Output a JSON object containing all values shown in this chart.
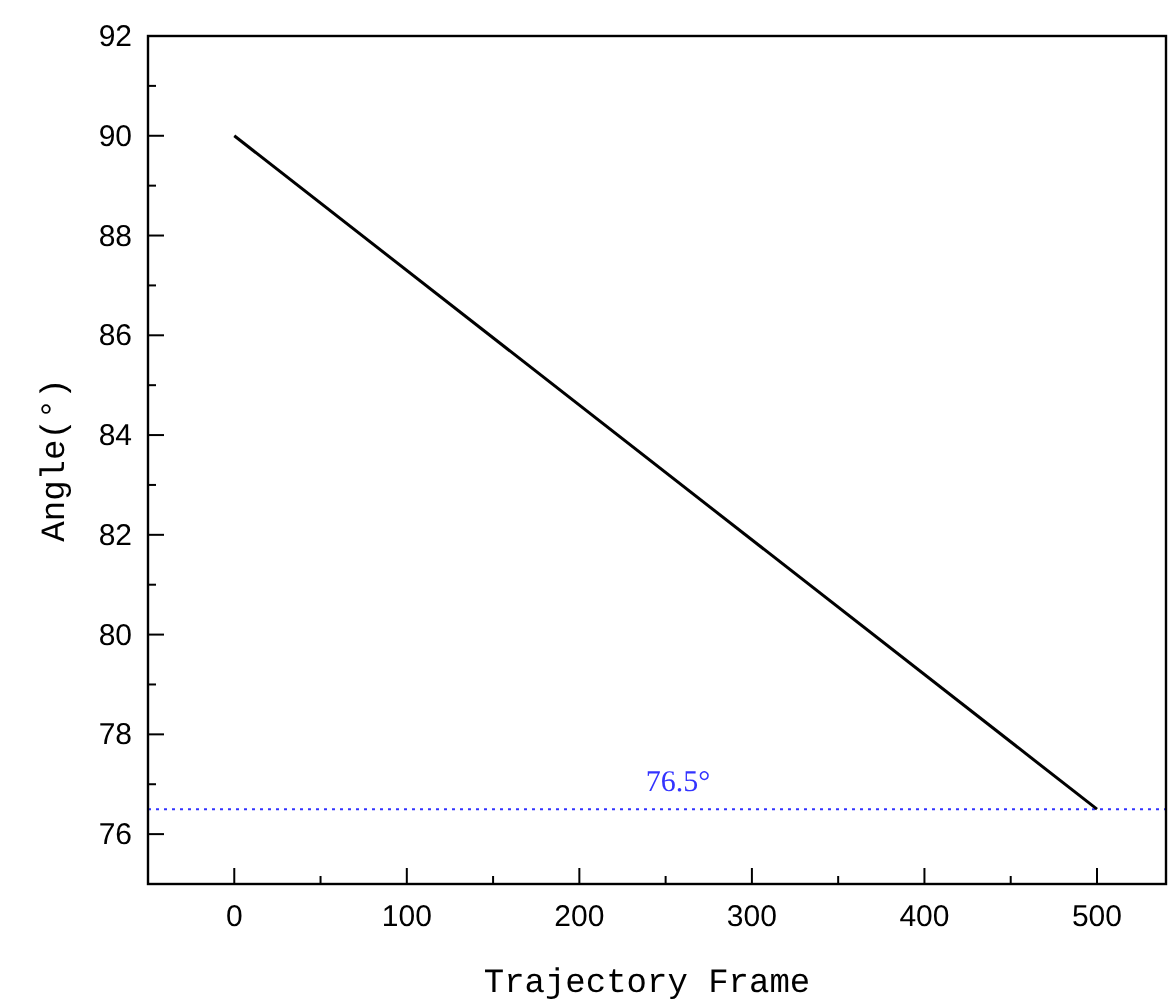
{
  "chart_data": {
    "type": "line",
    "xlabel": "Trajectory Frame",
    "ylabel": "Angle(°)",
    "x": [
      0,
      500
    ],
    "series": [
      {
        "color": "#000000",
        "values": [
          90,
          76.5
        ]
      }
    ],
    "xlim": [
      -50,
      540
    ],
    "ylim": [
      75,
      92
    ],
    "xticks": [
      0,
      {
        "value": 50,
        "label": null
      },
      100,
      {
        "value": 150,
        "label": null
      },
      200,
      {
        "value": 250,
        "label": null
      },
      300,
      {
        "value": 350,
        "label": null
      },
      400,
      {
        "value": 450,
        "label": null
      },
      500
    ],
    "yticks": [
      76,
      {
        "value": 77,
        "label": null
      },
      78,
      {
        "value": 79,
        "label": null
      },
      80,
      {
        "value": 81,
        "label": null
      },
      82,
      {
        "value": 83,
        "label": null
      },
      84,
      {
        "value": 85,
        "label": null
      },
      86,
      {
        "value": 87,
        "label": null
      },
      88,
      {
        "value": 89,
        "label": null
      },
      90,
      {
        "value": 91,
        "label": null
      },
      92
    ],
    "ref_lines": [
      {
        "axis": "y",
        "value": 76.5,
        "label": "76.5°",
        "color": "#3333ff",
        "line_style": "dotted"
      }
    ],
    "grid": false,
    "marker": "none",
    "line_style": "solid"
  }
}
